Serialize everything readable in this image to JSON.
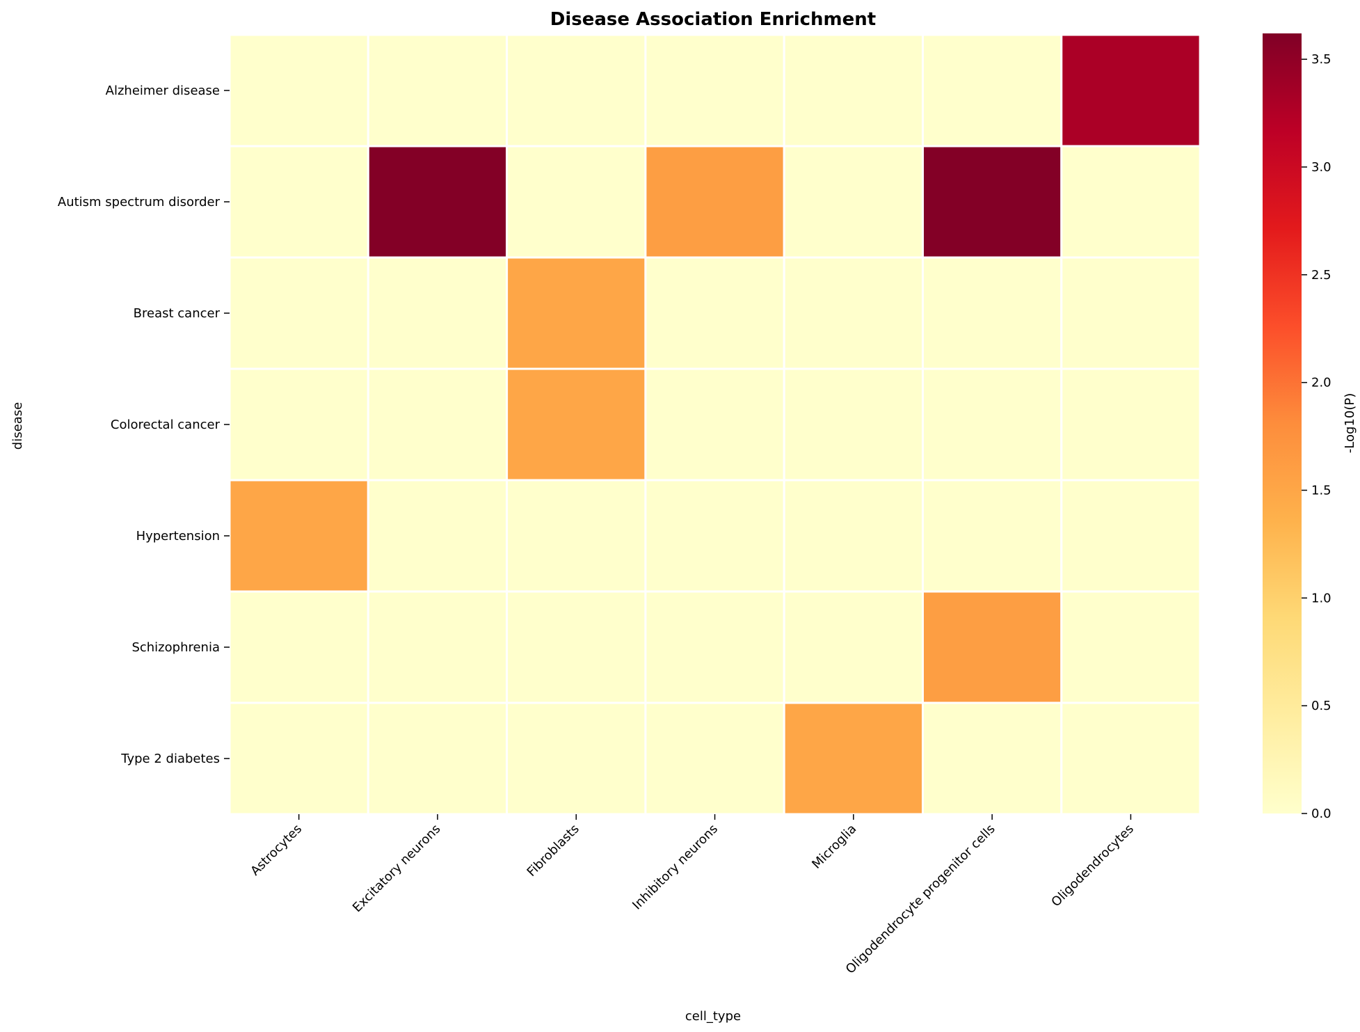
{
  "chart_data": {
    "type": "heatmap",
    "title": "Disease Association Enrichment",
    "xlabel": "cell_type",
    "ylabel": "disease",
    "x_categories": [
      "Astrocytes",
      "Excitatory neurons",
      "Fibroblasts",
      "Inhibitory neurons",
      "Microglia",
      "Oligodendrocyte progenitor cells",
      "Oligodendrocytes"
    ],
    "y_categories": [
      "Alzheimer disease",
      "Autism spectrum disorder",
      "Breast cancer",
      "Colorectal cancer",
      "Hypertension",
      "Schizophrenia",
      "Type 2 diabetes"
    ],
    "values": [
      [
        0,
        0,
        0,
        0,
        0,
        0,
        3.3
      ],
      [
        0,
        3.6,
        0,
        1.6,
        0,
        3.6,
        0
      ],
      [
        0,
        0,
        1.5,
        0,
        0,
        0,
        0
      ],
      [
        0,
        0,
        1.5,
        0,
        0,
        0,
        0
      ],
      [
        1.5,
        0,
        0,
        0,
        0,
        0,
        0
      ],
      [
        0,
        0,
        0,
        0,
        0,
        1.6,
        0
      ],
      [
        0,
        0,
        0,
        0,
        1.5,
        0,
        0
      ]
    ],
    "colorbar": {
      "label": "-Log10(P)",
      "range": [
        0,
        3.62
      ],
      "ticks": [
        "0.0",
        "0.5",
        "1.0",
        "1.5",
        "2.0",
        "2.5",
        "3.0",
        "3.5"
      ],
      "colormap": "YlOrRd"
    },
    "grid_lines": "white"
  }
}
